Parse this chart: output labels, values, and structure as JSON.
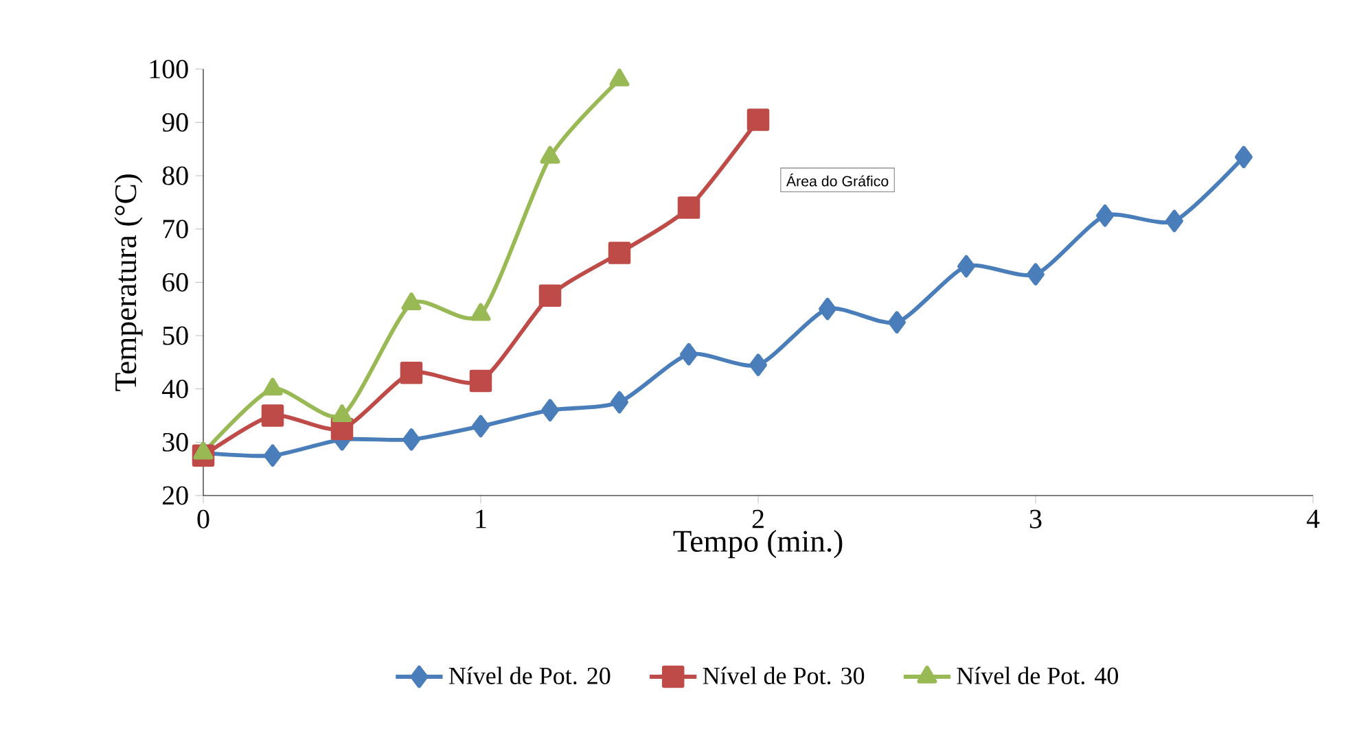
{
  "chart_data": {
    "type": "line",
    "xlabel": "Tempo (min.)",
    "ylabel": "Temperatura  (°C)",
    "xlim": [
      0,
      4
    ],
    "xticks": [
      0,
      1,
      2,
      3,
      4
    ],
    "ylim": [
      20,
      100
    ],
    "yticks": [
      20,
      30,
      40,
      50,
      60,
      70,
      80,
      90,
      100
    ],
    "grid": false,
    "legend": "bottom",
    "annotations": [
      "Área do Gráfico"
    ],
    "series": [
      {
        "name": "Nível de Pot. 20",
        "color": "#4a7ebb",
        "marker": "diamond",
        "x": [
          0,
          0.25,
          0.5,
          0.75,
          1,
          1.25,
          1.5,
          1.75,
          2,
          2.25,
          2.5,
          2.75,
          3,
          3.25,
          3.5,
          3.75
        ],
        "values": [
          28,
          27.5,
          30.5,
          30.5,
          33,
          36,
          37.5,
          46.5,
          44.5,
          55,
          52.5,
          63,
          61.5,
          72.5,
          71.5,
          83.5
        ]
      },
      {
        "name": "Nível de Pot. 30",
        "color": "#be4b48",
        "marker": "square",
        "x": [
          0,
          0.25,
          0.5,
          0.75,
          1,
          1.25,
          1.5,
          1.75,
          2
        ],
        "values": [
          27.5,
          35,
          32.5,
          43,
          41.5,
          57.5,
          65.5,
          74,
          90.5
        ]
      },
      {
        "name": "Nível de Pot. 40",
        "color": "#98b954",
        "marker": "triangle",
        "x": [
          0,
          0.25,
          0.5,
          0.75,
          1,
          1.25,
          1.5
        ],
        "values": [
          28,
          40,
          35,
          56,
          54,
          83.5,
          98
        ]
      }
    ]
  }
}
